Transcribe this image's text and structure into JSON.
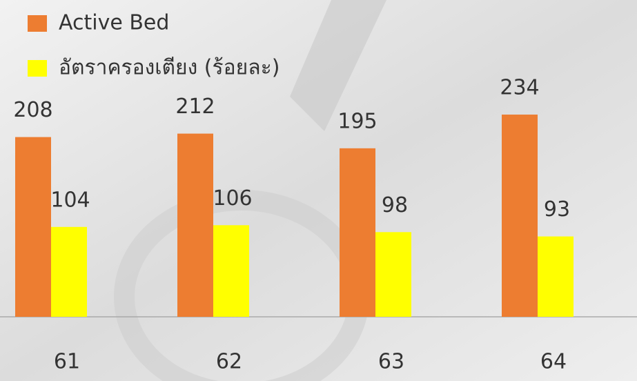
{
  "chart_data": {
    "type": "bar",
    "categories": [
      "61",
      "62",
      "63",
      "64"
    ],
    "series": [
      {
        "name": "Active Bed",
        "color": "#ed7d31",
        "values": [
          208,
          212,
          195,
          234
        ]
      },
      {
        "name": "อัตราครองเตียง (ร้อยละ)",
        "color": "#ffff00",
        "values": [
          104,
          106,
          98,
          93
        ]
      }
    ],
    "legend": "top-left"
  }
}
